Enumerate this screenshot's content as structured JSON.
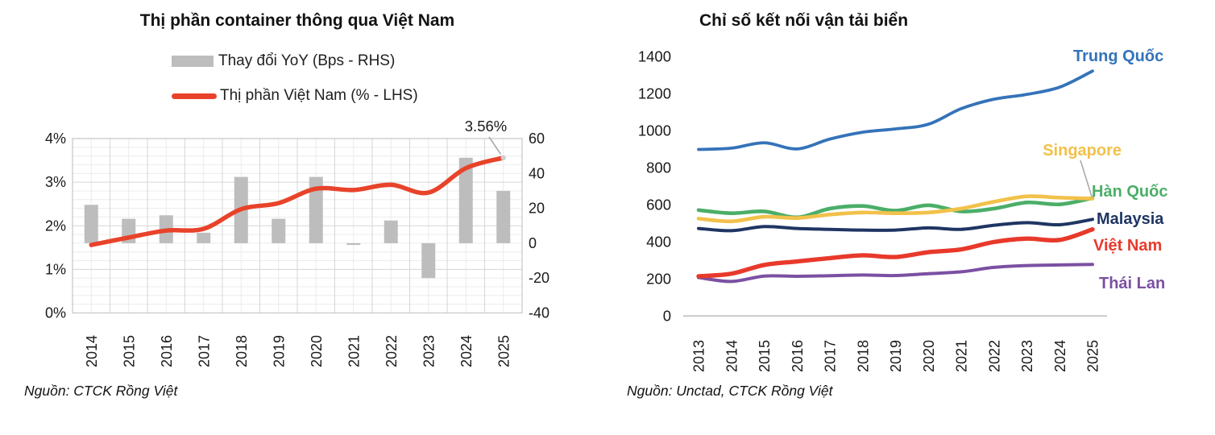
{
  "chart_data": [
    {
      "type": "bar",
      "title": "Thị phần container thông qua Việt Nam",
      "categories": [
        "2014",
        "2015",
        "2016",
        "2017",
        "2018",
        "2019",
        "2020",
        "2021",
        "2022",
        "2023",
        "2024",
        "2025"
      ],
      "series": [
        {
          "name": "Thay đổi YoY (Bps - RHS)",
          "kind": "bar",
          "axis": "right",
          "color": "#BDBDBD",
          "values": [
            22,
            14,
            16,
            6,
            38,
            14,
            38,
            -1,
            13,
            -20,
            49,
            30
          ]
        },
        {
          "name": "Thị phần Việt Nam (% - LHS)",
          "kind": "line",
          "axis": "left",
          "color": "#E8432A",
          "values": [
            1.56,
            1.73,
            1.89,
            1.93,
            2.38,
            2.52,
            2.85,
            2.82,
            2.94,
            2.76,
            3.32,
            3.56
          ]
        }
      ],
      "left_axis": {
        "ticks": [
          "4%",
          "3%",
          "2%",
          "1%",
          "0%"
        ],
        "values": [
          4,
          3,
          2,
          1,
          0
        ],
        "min": 0,
        "max": 4
      },
      "right_axis": {
        "ticks": [
          "60",
          "40",
          "20",
          "0",
          "-20",
          "-40"
        ],
        "values": [
          60,
          40,
          20,
          0,
          -20,
          -40
        ],
        "min": -40,
        "max": 60
      },
      "grid": "major-and-minor",
      "annotation": {
        "text": "3.56%",
        "year": "2025"
      },
      "source": "Nguồn: CTCK Rồng Việt"
    },
    {
      "type": "line",
      "title": "Chỉ số kết nối vận tải biển",
      "x": [
        "2013",
        "2014",
        "2015",
        "2016",
        "2017",
        "2018",
        "2019",
        "2020",
        "2021",
        "2022",
        "2023",
        "2024",
        "2025"
      ],
      "ylim": [
        0,
        1400
      ],
      "ytick_step": 200,
      "yticks": [
        "0",
        "200",
        "400",
        "600",
        "800",
        "1000",
        "1200",
        "1400"
      ],
      "grid": "none",
      "legend_position": "end-of-line-labels",
      "series": [
        {
          "name": "Trung Quốc",
          "color": "#3473B9",
          "values": [
            898,
            905,
            934,
            901,
            954,
            991,
            1009,
            1034,
            1118,
            1169,
            1195,
            1234,
            1321
          ]
        },
        {
          "name": "Singapore",
          "color": "#F2C14A",
          "values": [
            525,
            510,
            535,
            528,
            547,
            558,
            554,
            558,
            579,
            616,
            645,
            638,
            633
          ]
        },
        {
          "name": "Hàn Quốc",
          "color": "#4BAE68",
          "values": [
            571,
            554,
            564,
            532,
            579,
            593,
            568,
            597,
            564,
            579,
            612,
            602,
            636
          ]
        },
        {
          "name": "Malaysia",
          "color": "#1F3563",
          "values": [
            472,
            460,
            482,
            472,
            467,
            463,
            463,
            475,
            467,
            489,
            503,
            492,
            521
          ]
        },
        {
          "name": "Việt Nam",
          "color": "#E8392B",
          "values": [
            214,
            228,
            275,
            294,
            312,
            327,
            318,
            344,
            359,
            399,
            417,
            410,
            467
          ]
        },
        {
          "name": "Thái Lan",
          "color": "#7B50A2",
          "values": [
            207,
            186,
            215,
            214,
            217,
            221,
            218,
            228,
            238,
            262,
            272,
            275,
            278
          ]
        }
      ],
      "source": "Nguồn: Unctad, CTCK Rồng Việt"
    }
  ],
  "colors": {
    "grid_minor": "#ECECEC",
    "grid_major": "#D6D6D6",
    "plot_border": "#C6C6C6",
    "baseline": "#C9C9C9",
    "leader_line": "#A9A9A9",
    "end_dot": "#CFCFCF",
    "tick_text": "#1a1a1a"
  }
}
